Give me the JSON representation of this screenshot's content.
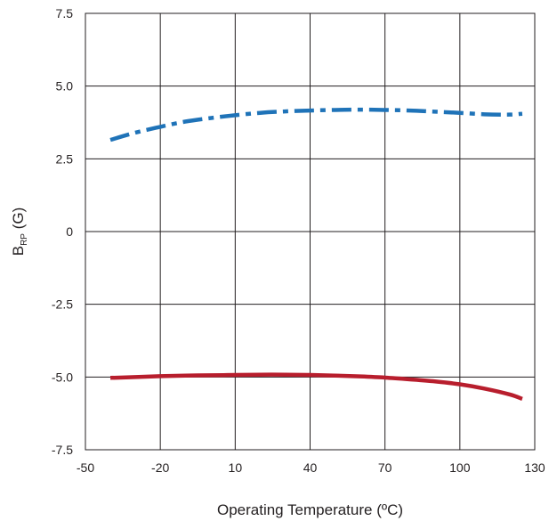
{
  "chart_data": {
    "type": "line",
    "xlabel": "Operating Temperature (ºC)",
    "ylabel": {
      "main": "B",
      "subscript": "RP",
      "suffix": " (G)"
    },
    "xlim": [
      -50,
      130
    ],
    "ylim": [
      -7.5,
      7.5
    ],
    "x_ticks": [
      -50,
      -20,
      10,
      40,
      70,
      100,
      130
    ],
    "x_tick_labels": [
      "-50",
      "-20",
      "10",
      "40",
      "70",
      "100",
      "130"
    ],
    "y_ticks": [
      7.5,
      5.0,
      2.5,
      0,
      -2.5,
      -5.0,
      -7.5
    ],
    "y_tick_labels": [
      "7.5",
      "5.0",
      "2.5",
      "0",
      "-2.5",
      "-5.0",
      "-7.5"
    ],
    "grid": true,
    "series": [
      {
        "color": "#1f73b8",
        "line_style": "dash-dot",
        "x": [
          -40,
          -30,
          -20,
          -10,
          0,
          10,
          20,
          30,
          40,
          50,
          60,
          70,
          80,
          90,
          100,
          110,
          120,
          125
        ],
        "y": [
          3.15,
          3.4,
          3.6,
          3.78,
          3.9,
          4.0,
          4.08,
          4.13,
          4.16,
          4.18,
          4.19,
          4.18,
          4.16,
          4.12,
          4.08,
          4.03,
          4.02,
          4.05
        ]
      },
      {
        "color": "#b81e2d",
        "line_style": "solid",
        "x": [
          -40,
          -30,
          -20,
          -10,
          0,
          10,
          20,
          30,
          40,
          50,
          60,
          70,
          80,
          90,
          100,
          110,
          120,
          125
        ],
        "y": [
          -5.03,
          -5.0,
          -4.97,
          -4.95,
          -4.94,
          -4.93,
          -4.92,
          -4.92,
          -4.93,
          -4.95,
          -4.98,
          -5.02,
          -5.08,
          -5.15,
          -5.25,
          -5.4,
          -5.6,
          -5.75
        ]
      }
    ]
  }
}
